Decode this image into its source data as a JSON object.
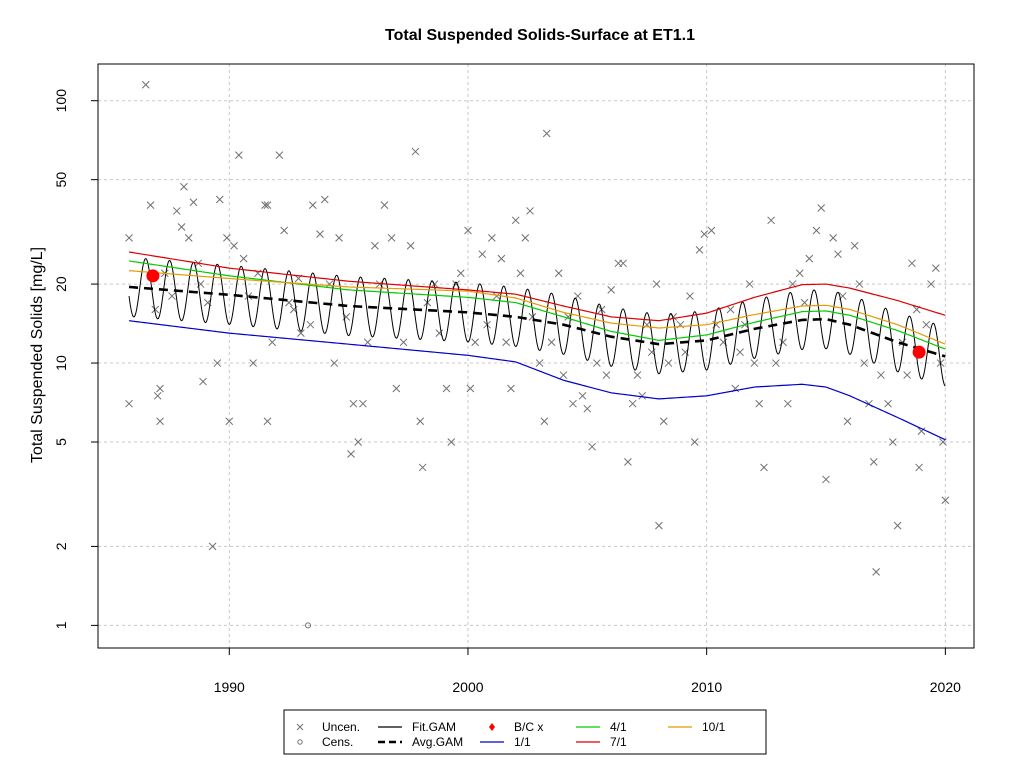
{
  "chart_data": {
    "type": "scatter",
    "title": "Total Suspended Solids-Surface at ET1.1",
    "ylabel": "Total Suspended Solids [mg/L]",
    "xlabel": "",
    "y_scale": "log",
    "xlim": [
      1984.5,
      2021.2
    ],
    "ylim": [
      0.82,
      138
    ],
    "x_ticks": [
      1990,
      2000,
      2010,
      2020
    ],
    "x_tick_labels": [
      "1990",
      "2000",
      "2010",
      "2020"
    ],
    "y_ticks": [
      1,
      2,
      5,
      10,
      20,
      50,
      100
    ],
    "y_tick_labels": [
      "1",
      "2",
      "5",
      "10",
      "20",
      "50",
      "100"
    ],
    "grid": true,
    "legend_position": "bottom",
    "legend": [
      {
        "label": "Uncen.",
        "symbol": "x",
        "color": "#707070"
      },
      {
        "label": "Cens.",
        "symbol": "o",
        "color": "#707070"
      },
      {
        "label": "Fit.GAM",
        "symbol": "line",
        "color": "#000000"
      },
      {
        "label": "Avg.GAM",
        "symbol": "dash",
        "color": "#000000"
      },
      {
        "label": "B/C x",
        "symbol": "dot",
        "color": "#ff0000"
      },
      {
        "label": "1/1",
        "symbol": "line",
        "color": "#0000cc"
      },
      {
        "label": "4/1",
        "symbol": "line",
        "color": "#00cc00"
      },
      {
        "label": "7/1",
        "symbol": "line",
        "color": "#dd0000"
      },
      {
        "label": "10/1",
        "symbol": "line",
        "color": "#e69a00"
      }
    ],
    "uncensored": [
      [
        1985.8,
        30
      ],
      [
        1985.8,
        7
      ],
      [
        1986.5,
        115
      ],
      [
        1986.7,
        40
      ],
      [
        1986.9,
        16
      ],
      [
        1987.0,
        7.5
      ],
      [
        1987.1,
        8
      ],
      [
        1987.1,
        6
      ],
      [
        1987.3,
        22
      ],
      [
        1987.6,
        18
      ],
      [
        1987.8,
        38
      ],
      [
        1988.0,
        33
      ],
      [
        1988.1,
        47
      ],
      [
        1988.3,
        30
      ],
      [
        1988.5,
        41
      ],
      [
        1988.7,
        24
      ],
      [
        1988.8,
        20
      ],
      [
        1988.9,
        8.5
      ],
      [
        1989.1,
        17
      ],
      [
        1989.3,
        2
      ],
      [
        1989.5,
        10
      ],
      [
        1989.6,
        42
      ],
      [
        1989.9,
        30
      ],
      [
        1990.0,
        6
      ],
      [
        1990.2,
        28
      ],
      [
        1990.4,
        62
      ],
      [
        1990.6,
        25
      ],
      [
        1990.8,
        18
      ],
      [
        1991.0,
        10
      ],
      [
        1991.2,
        22
      ],
      [
        1991.5,
        40
      ],
      [
        1991.6,
        40
      ],
      [
        1991.6,
        6
      ],
      [
        1991.8,
        12
      ],
      [
        1992.1,
        62
      ],
      [
        1992.3,
        32
      ],
      [
        1992.5,
        17
      ],
      [
        1992.7,
        16
      ],
      [
        1992.9,
        21
      ],
      [
        1993.0,
        13
      ],
      [
        1993.4,
        14
      ],
      [
        1993.5,
        40
      ],
      [
        1993.8,
        31
      ],
      [
        1994.0,
        42
      ],
      [
        1994.2,
        20
      ],
      [
        1994.4,
        10
      ],
      [
        1994.6,
        30
      ],
      [
        1994.9,
        15
      ],
      [
        1995.1,
        4.5
      ],
      [
        1995.2,
        7
      ],
      [
        1995.4,
        5
      ],
      [
        1995.6,
        7
      ],
      [
        1995.8,
        12
      ],
      [
        1996.1,
        28
      ],
      [
        1996.3,
        20
      ],
      [
        1996.5,
        40
      ],
      [
        1996.8,
        30
      ],
      [
        1997.0,
        8
      ],
      [
        1997.3,
        12
      ],
      [
        1997.6,
        28
      ],
      [
        1997.8,
        64
      ],
      [
        1998.0,
        6
      ],
      [
        1998.1,
        4
      ],
      [
        1998.3,
        17
      ],
      [
        1998.6,
        20
      ],
      [
        1998.8,
        13
      ],
      [
        1999.1,
        8
      ],
      [
        1999.3,
        5
      ],
      [
        1999.5,
        20
      ],
      [
        1999.7,
        22
      ],
      [
        2000.0,
        32
      ],
      [
        2000.1,
        8
      ],
      [
        2000.3,
        12
      ],
      [
        2000.6,
        26
      ],
      [
        2000.8,
        14
      ],
      [
        2001.0,
        30
      ],
      [
        2001.2,
        18
      ],
      [
        2001.4,
        25
      ],
      [
        2001.6,
        12
      ],
      [
        2001.8,
        8
      ],
      [
        2002.0,
        35
      ],
      [
        2002.2,
        22
      ],
      [
        2002.4,
        30
      ],
      [
        2002.6,
        38
      ],
      [
        2002.7,
        15
      ],
      [
        2003.0,
        10
      ],
      [
        2003.2,
        6
      ],
      [
        2003.3,
        75
      ],
      [
        2003.5,
        12
      ],
      [
        2003.8,
        22
      ],
      [
        2004.0,
        9
      ],
      [
        2004.2,
        15
      ],
      [
        2004.4,
        7
      ],
      [
        2004.6,
        18
      ],
      [
        2004.8,
        7.5
      ],
      [
        2005.0,
        6.7
      ],
      [
        2005.2,
        4.8
      ],
      [
        2005.4,
        10
      ],
      [
        2005.6,
        16
      ],
      [
        2005.8,
        9
      ],
      [
        2006.0,
        19
      ],
      [
        2006.3,
        24
      ],
      [
        2006.5,
        24
      ],
      [
        2006.7,
        4.2
      ],
      [
        2006.9,
        7
      ],
      [
        2007.1,
        9
      ],
      [
        2007.3,
        7.5
      ],
      [
        2007.5,
        14
      ],
      [
        2007.7,
        11
      ],
      [
        2007.9,
        20
      ],
      [
        2008.0,
        2.4
      ],
      [
        2008.2,
        6
      ],
      [
        2008.4,
        10
      ],
      [
        2008.6,
        15
      ],
      [
        2008.9,
        14
      ],
      [
        2009.1,
        11
      ],
      [
        2009.3,
        18
      ],
      [
        2009.5,
        5
      ],
      [
        2009.7,
        27
      ],
      [
        2009.9,
        31
      ],
      [
        2010.2,
        32
      ],
      [
        2010.4,
        14
      ],
      [
        2010.7,
        12
      ],
      [
        2011.0,
        16
      ],
      [
        2011.2,
        8
      ],
      [
        2011.4,
        11
      ],
      [
        2011.6,
        14
      ],
      [
        2011.8,
        20
      ],
      [
        2012.0,
        10
      ],
      [
        2012.2,
        7
      ],
      [
        2012.4,
        4
      ],
      [
        2012.7,
        35
      ],
      [
        2012.9,
        10
      ],
      [
        2013.2,
        12
      ],
      [
        2013.4,
        7
      ],
      [
        2013.6,
        20
      ],
      [
        2013.9,
        22
      ],
      [
        2014.1,
        17
      ],
      [
        2014.3,
        25
      ],
      [
        2014.6,
        32
      ],
      [
        2014.8,
        39
      ],
      [
        2015.0,
        3.6
      ],
      [
        2015.3,
        30
      ],
      [
        2015.5,
        26
      ],
      [
        2015.7,
        18
      ],
      [
        2015.9,
        6
      ],
      [
        2016.2,
        28
      ],
      [
        2016.4,
        20
      ],
      [
        2016.6,
        10
      ],
      [
        2016.8,
        7
      ],
      [
        2017.0,
        4.2
      ],
      [
        2017.1,
        1.6
      ],
      [
        2017.3,
        9
      ],
      [
        2017.6,
        7
      ],
      [
        2017.8,
        5
      ],
      [
        2018.0,
        2.4
      ],
      [
        2018.2,
        12
      ],
      [
        2018.4,
        9
      ],
      [
        2018.6,
        24
      ],
      [
        2018.8,
        16
      ],
      [
        2018.9,
        4
      ],
      [
        2019.0,
        5.5
      ],
      [
        2019.2,
        14
      ],
      [
        2019.4,
        20
      ],
      [
        2019.6,
        23
      ],
      [
        2019.8,
        10
      ],
      [
        2019.9,
        5
      ],
      [
        2020.0,
        3
      ]
    ],
    "censored": [
      [
        1993.3,
        1
      ]
    ],
    "fit_gam_amplitude": 0.26,
    "fit_gam_x_range": [
      1985.8,
      2020.0
    ],
    "avg_gam": {
      "x": [
        1985.8,
        1990,
        1995,
        2000,
        2002,
        2004,
        2006,
        2008,
        2010,
        2012,
        2014,
        2015,
        2016,
        2018,
        2020
      ],
      "y": [
        19.5,
        18.2,
        16.5,
        15.6,
        15.0,
        14.0,
        12.6,
        11.8,
        12.2,
        13.5,
        14.6,
        14.7,
        14.0,
        12.0,
        10.6
      ]
    },
    "bc_points": [
      [
        1986.8,
        21.5
      ],
      [
        2018.9,
        11
      ]
    ],
    "season_curves": [
      {
        "name": "1/1",
        "color": "#0000cc",
        "x": [
          1985.8,
          1990,
          1995,
          2000,
          2002,
          2004,
          2006,
          2008,
          2010,
          2012,
          2014,
          2015,
          2016,
          2018,
          2020
        ],
        "y": [
          14.5,
          13.0,
          11.8,
          10.7,
          10.1,
          8.6,
          7.7,
          7.3,
          7.5,
          8.1,
          8.3,
          8.1,
          7.5,
          6.2,
          5.1
        ]
      },
      {
        "name": "4/1",
        "color": "#00cc00",
        "x": [
          1985.8,
          1990,
          1995,
          2000,
          2002,
          2004,
          2006,
          2008,
          2010,
          2012,
          2014,
          2015,
          2016,
          2018,
          2020
        ],
        "y": [
          24.5,
          21.5,
          19.0,
          17.8,
          17.0,
          15.0,
          13.2,
          12.2,
          12.8,
          14.3,
          15.7,
          15.8,
          15.2,
          13.3,
          11.3
        ]
      },
      {
        "name": "7/1",
        "color": "#dd0000",
        "x": [
          1985.8,
          1990,
          1995,
          2000,
          2002,
          2004,
          2006,
          2008,
          2010,
          2012,
          2014,
          2015,
          2016,
          2018,
          2020
        ],
        "y": [
          26.5,
          23.0,
          20.5,
          19.0,
          18.3,
          16.5,
          15.0,
          14.5,
          15.5,
          17.8,
          19.9,
          20.0,
          19.3,
          17.3,
          15.2
        ]
      },
      {
        "name": "10/1",
        "color": "#e69a00",
        "x": [
          1985.8,
          1990,
          1995,
          2000,
          2002,
          2004,
          2006,
          2008,
          2010,
          2012,
          2014,
          2015,
          2016,
          2018,
          2020
        ],
        "y": [
          22.5,
          21.0,
          19.5,
          18.8,
          17.7,
          15.6,
          14.2,
          13.6,
          14.0,
          15.3,
          16.5,
          16.6,
          16.0,
          14.0,
          11.8
        ]
      }
    ]
  }
}
